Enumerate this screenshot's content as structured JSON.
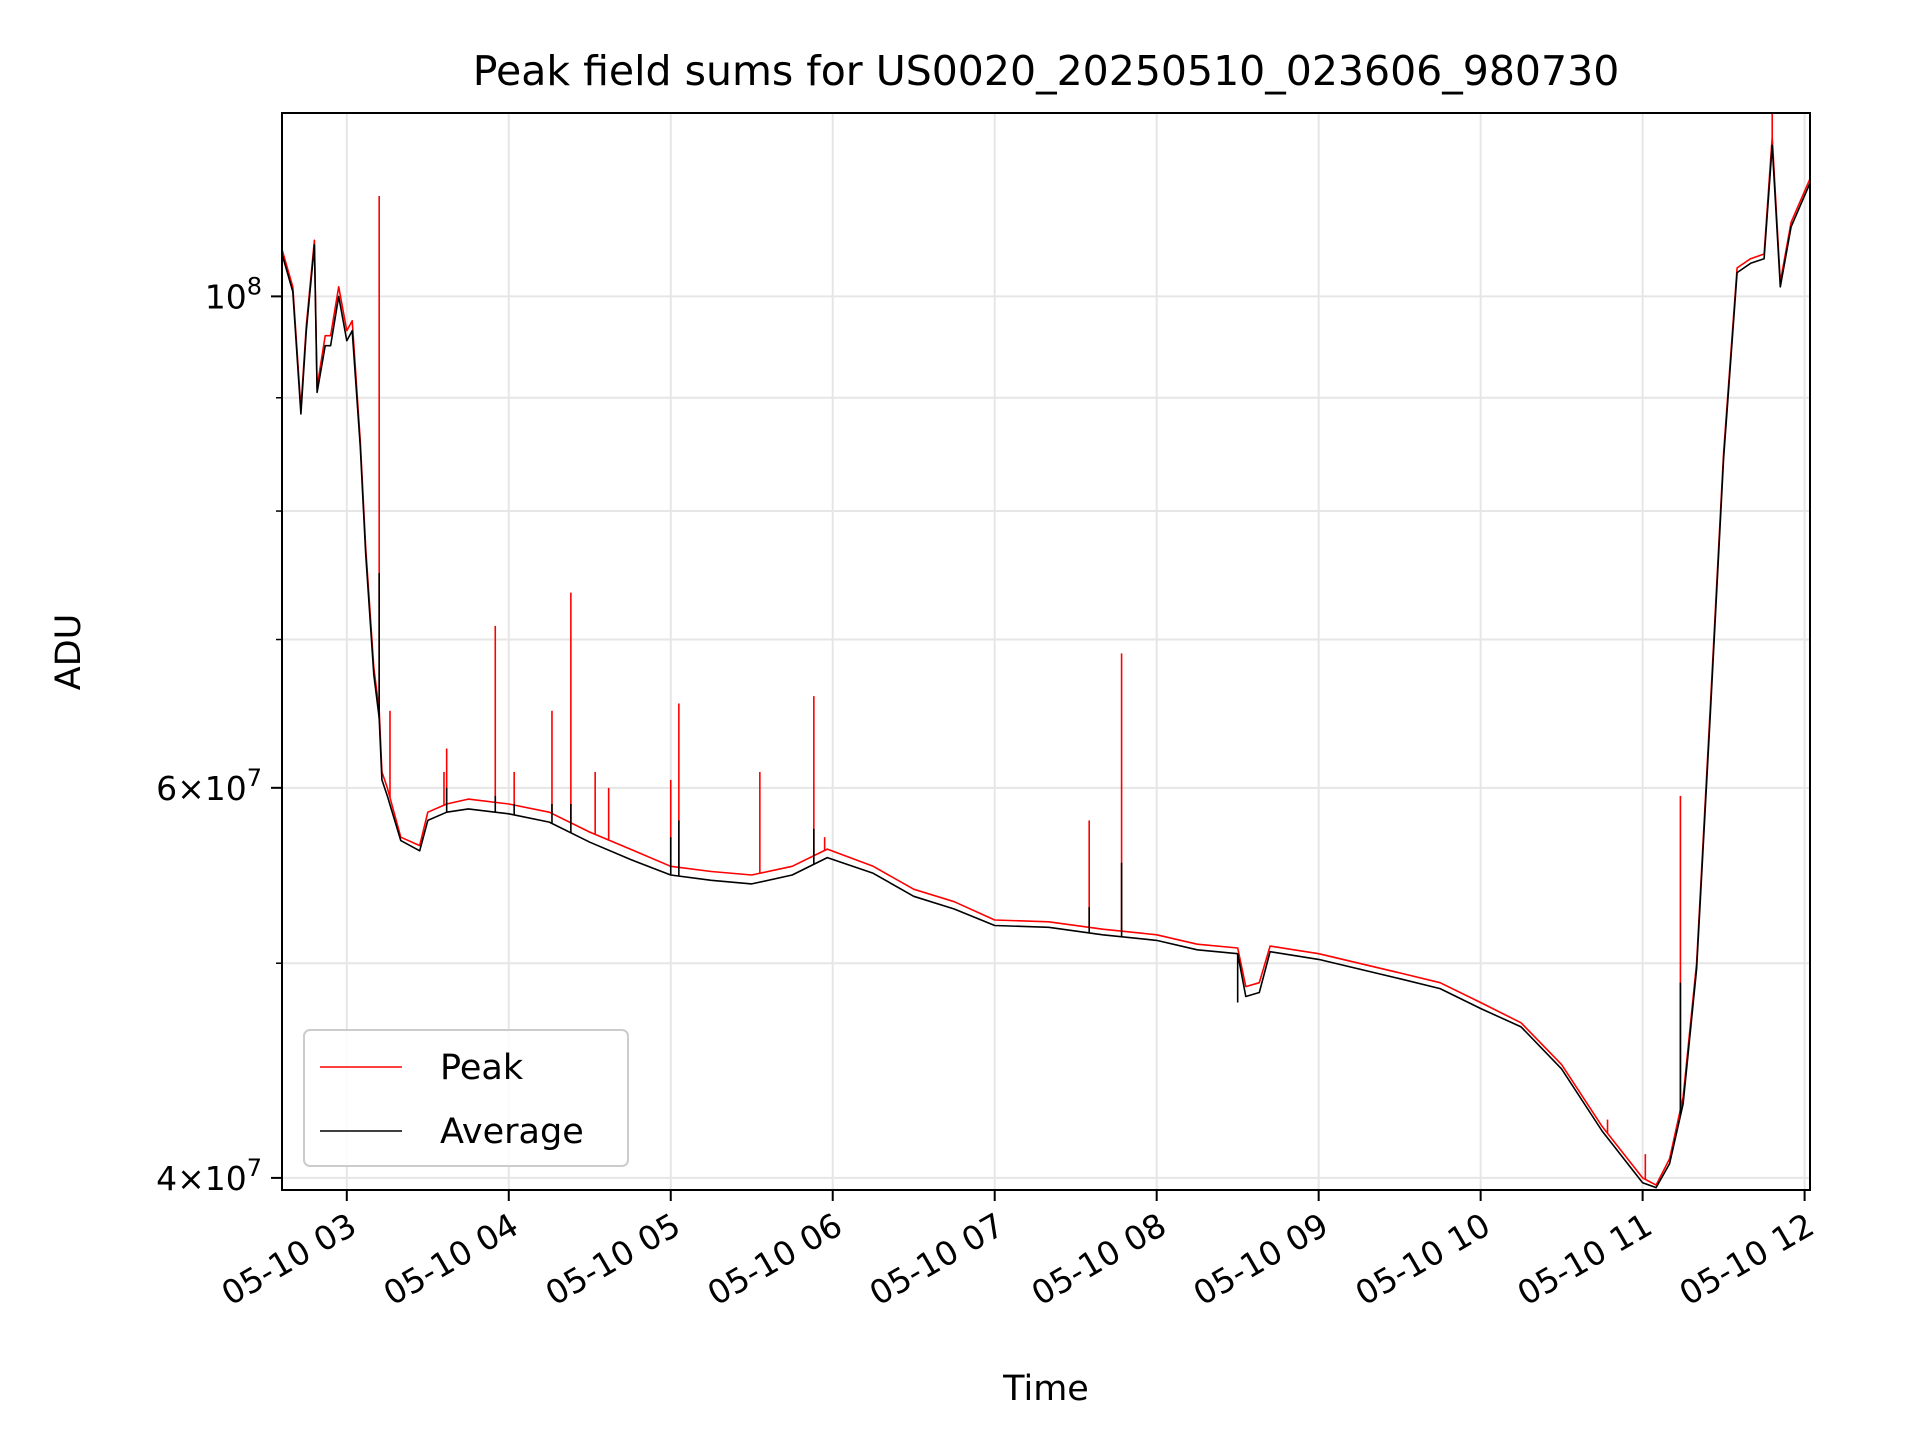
{
  "chart_data": {
    "type": "line",
    "title": "Peak field sums for US0020_20250510_023606_980730",
    "xlabel": "Time",
    "ylabel": "ADU",
    "yscale": "log",
    "xlim": [
      "2025-05-10 02:36",
      "2025-05-10 12:02"
    ],
    "ylim": [
      39500000,
      121000000
    ],
    "grid": true,
    "legend_position": "lower-left",
    "x_ticks": [
      "05-10 03",
      "05-10 04",
      "05-10 05",
      "05-10 06",
      "05-10 07",
      "05-10 08",
      "05-10 09",
      "05-10 10",
      "05-10 11",
      "05-10 12"
    ],
    "x_tick_values": [
      "2025-05-10 03:00",
      "2025-05-10 04:00",
      "2025-05-10 05:00",
      "2025-05-10 06:00",
      "2025-05-10 07:00",
      "2025-05-10 08:00",
      "2025-05-10 09:00",
      "2025-05-10 10:00",
      "2025-05-10 11:00",
      "2025-05-10 12:00"
    ],
    "y_major_ticks": [
      {
        "value": 40000000,
        "mantissa": "4",
        "exponent": "7"
      },
      {
        "value": 60000000,
        "mantissa": "6",
        "exponent": "7"
      },
      {
        "value": 100000000,
        "mantissa": "",
        "exponent": "8"
      }
    ],
    "y_minor_ticks": [
      50000000,
      70000000,
      80000000,
      90000000
    ],
    "series": [
      {
        "name": "Peak",
        "color": "#ff0000",
        "points": [
          [
            "2025-05-10 02:36",
            105000000
          ],
          [
            "2025-05-10 02:40",
            101000000
          ],
          [
            "2025-05-10 02:43",
            89000000
          ],
          [
            "2025-05-10 02:45",
            97000000
          ],
          [
            "2025-05-10 02:48",
            106000000
          ],
          [
            "2025-05-10 02:49",
            91000000
          ],
          [
            "2025-05-10 02:52",
            96000000
          ],
          [
            "2025-05-10 02:54",
            96000000
          ],
          [
            "2025-05-10 02:57",
            101000000
          ],
          [
            "2025-05-10 03:00",
            96500000
          ],
          [
            "2025-05-10 03:02",
            97500000
          ],
          [
            "2025-05-10 03:05",
            86000000
          ],
          [
            "2025-05-10 03:07",
            77000000
          ],
          [
            "2025-05-10 03:10",
            68000000
          ],
          [
            "2025-05-10 03:12",
            65000000
          ],
          [
            "2025-05-10 03:13",
            61000000
          ],
          [
            "2025-05-10 03:15",
            60000000
          ],
          [
            "2025-05-10 03:20",
            57000000
          ],
          [
            "2025-05-10 03:27",
            56500000
          ],
          [
            "2025-05-10 03:30",
            58500000
          ],
          [
            "2025-05-10 03:37",
            59000000
          ],
          [
            "2025-05-10 03:45",
            59300000
          ],
          [
            "2025-05-10 04:00",
            59000000
          ],
          [
            "2025-05-10 04:15",
            58500000
          ],
          [
            "2025-05-10 04:30",
            57300000
          ],
          [
            "2025-05-10 04:45",
            56300000
          ],
          [
            "2025-05-10 05:00",
            55300000
          ],
          [
            "2025-05-10 05:15",
            55000000
          ],
          [
            "2025-05-10 05:30",
            54800000
          ],
          [
            "2025-05-10 05:45",
            55300000
          ],
          [
            "2025-05-10 05:58",
            56300000
          ],
          [
            "2025-05-10 06:15",
            55300000
          ],
          [
            "2025-05-10 06:30",
            54000000
          ],
          [
            "2025-05-10 06:45",
            53300000
          ],
          [
            "2025-05-10 07:00",
            52300000
          ],
          [
            "2025-05-10 07:20",
            52200000
          ],
          [
            "2025-05-10 07:40",
            51800000
          ],
          [
            "2025-05-10 08:00",
            51500000
          ],
          [
            "2025-05-10 08:15",
            51000000
          ],
          [
            "2025-05-10 08:30",
            50800000
          ],
          [
            "2025-05-10 08:33",
            48800000
          ],
          [
            "2025-05-10 08:38",
            49000000
          ],
          [
            "2025-05-10 08:42",
            50900000
          ],
          [
            "2025-05-10 09:00",
            50500000
          ],
          [
            "2025-05-10 09:30",
            49500000
          ],
          [
            "2025-05-10 09:45",
            49000000
          ],
          [
            "2025-05-10 10:00",
            48000000
          ],
          [
            "2025-05-10 10:15",
            47000000
          ],
          [
            "2025-05-10 10:30",
            45000000
          ],
          [
            "2025-05-10 10:45",
            42200000
          ],
          [
            "2025-05-10 11:00",
            40000000
          ],
          [
            "2025-05-10 11:05",
            39700000
          ],
          [
            "2025-05-10 11:10",
            40800000
          ],
          [
            "2025-05-10 11:15",
            43500000
          ],
          [
            "2025-05-10 11:20",
            50000000
          ],
          [
            "2025-05-10 11:25",
            65000000
          ],
          [
            "2025-05-10 11:30",
            85000000
          ],
          [
            "2025-05-10 11:35",
            103000000
          ],
          [
            "2025-05-10 11:40",
            104000000
          ],
          [
            "2025-05-10 11:45",
            104500000
          ],
          [
            "2025-05-10 11:48",
            118000000
          ],
          [
            "2025-05-10 11:51",
            101500000
          ],
          [
            "2025-05-10 11:55",
            108000000
          ],
          [
            "2025-05-10 12:02",
            113000000
          ]
        ],
        "spikes": [
          [
            "2025-05-10 03:12",
            111000000
          ],
          [
            "2025-05-10 03:16",
            65000000
          ],
          [
            "2025-05-10 03:36",
            61000000
          ],
          [
            "2025-05-10 03:37",
            62500000
          ],
          [
            "2025-05-10 03:55",
            71000000
          ],
          [
            "2025-05-10 04:02",
            61000000
          ],
          [
            "2025-05-10 04:16",
            65000000
          ],
          [
            "2025-05-10 04:23",
            73500000
          ],
          [
            "2025-05-10 04:32",
            61000000
          ],
          [
            "2025-05-10 04:37",
            60000000
          ],
          [
            "2025-05-10 05:00",
            60500000
          ],
          [
            "2025-05-10 05:03",
            65500000
          ],
          [
            "2025-05-10 05:33",
            61000000
          ],
          [
            "2025-05-10 05:53",
            66000000
          ],
          [
            "2025-05-10 05:57",
            57000000
          ],
          [
            "2025-05-10 07:35",
            58000000
          ],
          [
            "2025-05-10 07:47",
            69000000
          ],
          [
            "2025-05-10 10:47",
            42500000
          ],
          [
            "2025-05-10 11:01",
            41000000
          ],
          [
            "2025-05-10 11:14",
            59500000
          ],
          [
            "2025-05-10 11:48",
            121000000
          ]
        ]
      },
      {
        "name": "Average",
        "color": "#000000",
        "points": [
          [
            "2025-05-10 02:36",
            104500000
          ],
          [
            "2025-05-10 02:40",
            100500000
          ],
          [
            "2025-05-10 02:43",
            88500000
          ],
          [
            "2025-05-10 02:45",
            96500000
          ],
          [
            "2025-05-10 02:48",
            105500000
          ],
          [
            "2025-05-10 02:49",
            90500000
          ],
          [
            "2025-05-10 02:52",
            95000000
          ],
          [
            "2025-05-10 02:54",
            95000000
          ],
          [
            "2025-05-10 02:57",
            100000000
          ],
          [
            "2025-05-10 03:00",
            95500000
          ],
          [
            "2025-05-10 03:02",
            96500000
          ],
          [
            "2025-05-10 03:05",
            85500000
          ],
          [
            "2025-05-10 03:07",
            76500000
          ],
          [
            "2025-05-10 03:10",
            67500000
          ],
          [
            "2025-05-10 03:12",
            64500000
          ],
          [
            "2025-05-10 03:13",
            60500000
          ],
          [
            "2025-05-10 03:15",
            59500000
          ],
          [
            "2025-05-10 03:20",
            56800000
          ],
          [
            "2025-05-10 03:27",
            56200000
          ],
          [
            "2025-05-10 03:30",
            58000000
          ],
          [
            "2025-05-10 03:37",
            58500000
          ],
          [
            "2025-05-10 03:45",
            58700000
          ],
          [
            "2025-05-10 04:00",
            58400000
          ],
          [
            "2025-05-10 04:15",
            57900000
          ],
          [
            "2025-05-10 04:30",
            56700000
          ],
          [
            "2025-05-10 04:45",
            55700000
          ],
          [
            "2025-05-10 05:00",
            54800000
          ],
          [
            "2025-05-10 05:15",
            54500000
          ],
          [
            "2025-05-10 05:30",
            54300000
          ],
          [
            "2025-05-10 05:45",
            54800000
          ],
          [
            "2025-05-10 05:58",
            55800000
          ],
          [
            "2025-05-10 06:15",
            54900000
          ],
          [
            "2025-05-10 06:30",
            53600000
          ],
          [
            "2025-05-10 06:45",
            52900000
          ],
          [
            "2025-05-10 07:00",
            52000000
          ],
          [
            "2025-05-10 07:20",
            51900000
          ],
          [
            "2025-05-10 07:40",
            51500000
          ],
          [
            "2025-05-10 08:00",
            51200000
          ],
          [
            "2025-05-10 08:15",
            50700000
          ],
          [
            "2025-05-10 08:30",
            50500000
          ],
          [
            "2025-05-10 08:33",
            48300000
          ],
          [
            "2025-05-10 08:38",
            48500000
          ],
          [
            "2025-05-10 08:42",
            50600000
          ],
          [
            "2025-05-10 09:00",
            50200000
          ],
          [
            "2025-05-10 09:30",
            49200000
          ],
          [
            "2025-05-10 09:45",
            48700000
          ],
          [
            "2025-05-10 10:00",
            47700000
          ],
          [
            "2025-05-10 10:15",
            46800000
          ],
          [
            "2025-05-10 10:30",
            44800000
          ],
          [
            "2025-05-10 10:45",
            42000000
          ],
          [
            "2025-05-10 11:00",
            39800000
          ],
          [
            "2025-05-10 11:05",
            39600000
          ],
          [
            "2025-05-10 11:10",
            40600000
          ],
          [
            "2025-05-10 11:15",
            43200000
          ],
          [
            "2025-05-10 11:20",
            49700000
          ],
          [
            "2025-05-10 11:25",
            64500000
          ],
          [
            "2025-05-10 11:30",
            84500000
          ],
          [
            "2025-05-10 11:35",
            102500000
          ],
          [
            "2025-05-10 11:40",
            103500000
          ],
          [
            "2025-05-10 11:45",
            104000000
          ],
          [
            "2025-05-10 11:48",
            117000000
          ],
          [
            "2025-05-10 11:51",
            101000000
          ],
          [
            "2025-05-10 11:55",
            107500000
          ],
          [
            "2025-05-10 12:02",
            112500000
          ]
        ],
        "spikes": [
          [
            "2025-05-10 03:12",
            75000000
          ],
          [
            "2025-05-10 03:37",
            60000000
          ],
          [
            "2025-05-10 03:55",
            59500000
          ],
          [
            "2025-05-10 04:02",
            59000000
          ],
          [
            "2025-05-10 04:16",
            59000000
          ],
          [
            "2025-05-10 04:23",
            59000000
          ],
          [
            "2025-05-10 05:00",
            57000000
          ],
          [
            "2025-05-10 05:03",
            58000000
          ],
          [
            "2025-05-10 05:53",
            57500000
          ],
          [
            "2025-05-10 07:35",
            53000000
          ],
          [
            "2025-05-10 07:47",
            55500000
          ],
          [
            "2025-05-10 08:30",
            48000000
          ],
          [
            "2025-05-10 11:14",
            49000000
          ],
          [
            "2025-05-10 11:48",
            116000000
          ]
        ]
      }
    ]
  }
}
